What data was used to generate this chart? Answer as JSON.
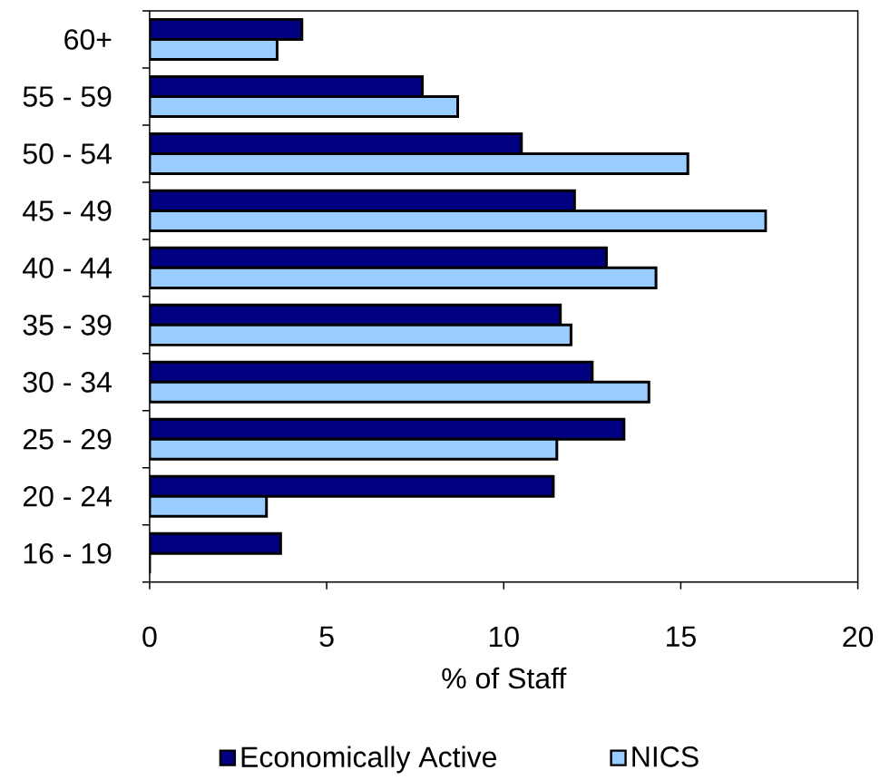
{
  "chart_data": {
    "type": "bar",
    "orientation": "horizontal",
    "categories": [
      "60+",
      "55 - 59",
      "50 - 54",
      "45 - 49",
      "40 - 44",
      "35 - 39",
      "30 - 34",
      "25 - 29",
      "20 - 24",
      "16 - 19"
    ],
    "xlabel": "% of Staff",
    "xlim": [
      0,
      20
    ],
    "xticks": [
      0,
      5,
      10,
      15,
      20
    ],
    "legend": "bottom",
    "series": [
      {
        "name": "Economically Active",
        "color": "#000080",
        "values": [
          4.3,
          7.7,
          10.5,
          12.0,
          12.9,
          11.6,
          12.5,
          13.4,
          11.4,
          3.7
        ]
      },
      {
        "name": "NICS",
        "color": "#99ccff",
        "values": [
          3.6,
          8.7,
          15.2,
          17.4,
          14.3,
          11.9,
          14.1,
          11.5,
          3.3,
          0
        ]
      }
    ]
  }
}
